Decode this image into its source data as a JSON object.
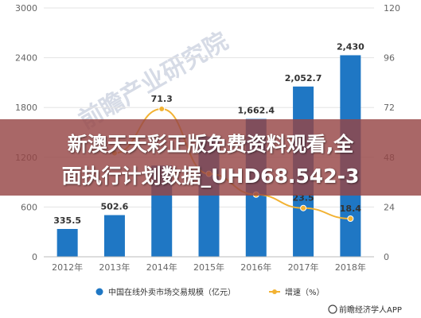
{
  "chart_data": {
    "type": "bar",
    "categories": [
      "2012年",
      "2013年",
      "2014年",
      "2015年",
      "2016年",
      "2017年",
      "2018年"
    ],
    "series": [
      {
        "name": "中国在线外卖市场交易规模（亿元）",
        "type": "bar",
        "axis": "left",
        "color": "#1f77c4",
        "values": [
          335.5,
          502.6,
          1100,
          1450,
          1662.4,
          2052.7,
          2430
        ],
        "labels": [
          "335.5",
          "502.6",
          "",
          "",
          "1,662.4",
          "2,052.7",
          "2,430"
        ]
      },
      {
        "name": "增速（%）",
        "type": "line",
        "axis": "right",
        "color": "#f2b233",
        "values": [
          null,
          50,
          71.3,
          40,
          30,
          23.5,
          18.4
        ],
        "labels": [
          "",
          "",
          "71.3",
          "",
          "",
          "23.5",
          "18.4"
        ]
      }
    ],
    "y_left": {
      "lim": [
        0,
        3000
      ],
      "ticks": [
        "0",
        "600",
        "1200",
        "1800",
        "2400",
        "3000"
      ]
    },
    "y_right": {
      "lim": [
        0,
        120
      ],
      "ticks": [
        "0",
        "24",
        "48",
        "72",
        "96",
        "120"
      ]
    },
    "grid": true,
    "legend": "bottom-center"
  },
  "legend": {
    "bar_label": "中国在线外卖市场交易规模（亿元）",
    "line_label": "增速（%）"
  },
  "source": "前瞻经济学人APP",
  "watermark": "前瞻产业研究院",
  "banner": {
    "line1": "新澳天天彩正版免费资料观看,全",
    "line2": "面执行计划数据_UHD68.542-3"
  }
}
